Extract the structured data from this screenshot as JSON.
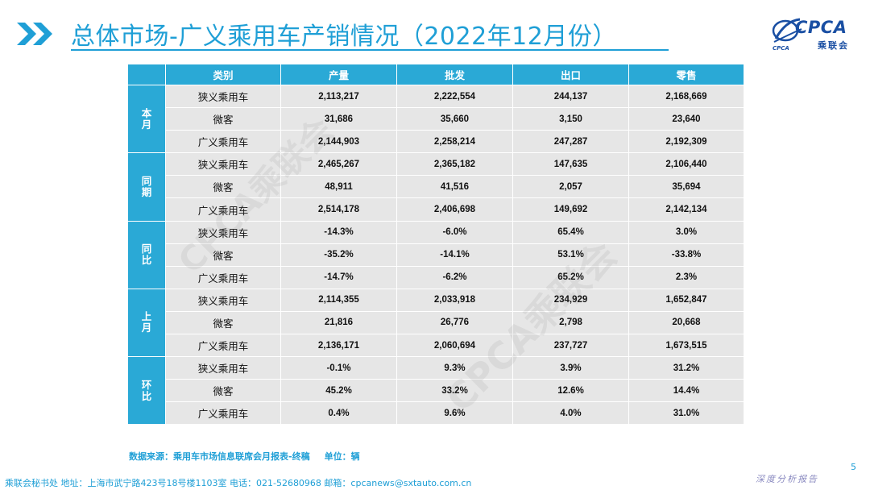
{
  "slide": {
    "title": "总体市场-广义乘用车产销情况（2022年12月份）",
    "page_number": "5"
  },
  "logo": {
    "brand": "CPCA",
    "brand_cn": "乘联会",
    "mark_text": "CPCA"
  },
  "colors": {
    "accent": "#1f9fd6",
    "header_bg": "#2aa9d6",
    "cell_bg": "#e6e6e6",
    "logo_blue": "#1a4fa3"
  },
  "table": {
    "headers": [
      "",
      "类别",
      "产量",
      "批发",
      "出口",
      "零售"
    ],
    "groups": [
      {
        "label": "本月",
        "rows": [
          {
            "category": "狭义乘用车",
            "values": [
              "2,113,217",
              "2,222,554",
              "244,137",
              "2,168,669"
            ]
          },
          {
            "category": "微客",
            "values": [
              "31,686",
              "35,660",
              "3,150",
              "23,640"
            ]
          },
          {
            "category": "广义乘用车",
            "values": [
              "2,144,903",
              "2,258,214",
              "247,287",
              "2,192,309"
            ]
          }
        ]
      },
      {
        "label": "同期",
        "rows": [
          {
            "category": "狭义乘用车",
            "values": [
              "2,465,267",
              "2,365,182",
              "147,635",
              "2,106,440"
            ]
          },
          {
            "category": "微客",
            "values": [
              "48,911",
              "41,516",
              "2,057",
              "35,694"
            ]
          },
          {
            "category": "广义乘用车",
            "values": [
              "2,514,178",
              "2,406,698",
              "149,692",
              "2,142,134"
            ]
          }
        ]
      },
      {
        "label": "同比",
        "rows": [
          {
            "category": "狭义乘用车",
            "values": [
              "-14.3%",
              "-6.0%",
              "65.4%",
              "3.0%"
            ]
          },
          {
            "category": "微客",
            "values": [
              "-35.2%",
              "-14.1%",
              "53.1%",
              "-33.8%"
            ]
          },
          {
            "category": "广义乘用车",
            "values": [
              "-14.7%",
              "-6.2%",
              "65.2%",
              "2.3%"
            ]
          }
        ]
      },
      {
        "label": "上月",
        "rows": [
          {
            "category": "狭义乘用车",
            "values": [
              "2,114,355",
              "2,033,918",
              "234,929",
              "1,652,847"
            ]
          },
          {
            "category": "微客",
            "values": [
              "21,816",
              "26,776",
              "2,798",
              "20,668"
            ]
          },
          {
            "category": "广义乘用车",
            "values": [
              "2,136,171",
              "2,060,694",
              "237,727",
              "1,673,515"
            ]
          }
        ]
      },
      {
        "label": "环比",
        "rows": [
          {
            "category": "狭义乘用车",
            "values": [
              "-0.1%",
              "9.3%",
              "3.9%",
              "31.2%"
            ]
          },
          {
            "category": "微客",
            "values": [
              "45.2%",
              "33.2%",
              "12.6%",
              "14.4%"
            ]
          },
          {
            "category": "广义乘用车",
            "values": [
              "0.4%",
              "9.6%",
              "4.0%",
              "31.0%"
            ]
          }
        ]
      }
    ]
  },
  "watermark": {
    "text": "CPCA乘联会"
  },
  "source_note": {
    "label": "数据来源：乘用车市场信息联席会月报表-终稿",
    "unit": "单位：辆"
  },
  "footer": {
    "text": "乘联会秘书处   地址：上海市武宁路423号18号楼1103室  电话：021-52680968   邮箱：cpcanews@sxtauto.com.cn"
  },
  "corner_watermark": {
    "text": "深度分析报告"
  }
}
